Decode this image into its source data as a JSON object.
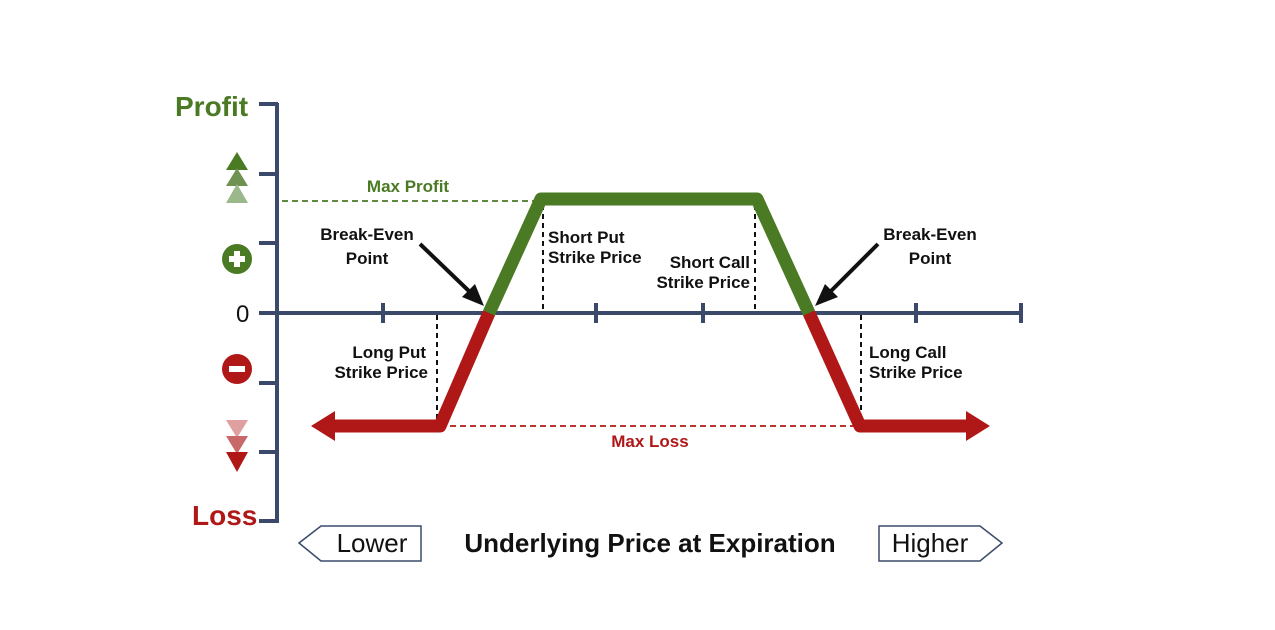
{
  "colors": {
    "axis": "#3b4a6b",
    "profit": "#4a7a23",
    "loss": "#b01818",
    "profit_light": "#8fae7a",
    "loss_light": "#d98a8a",
    "text": "#111111"
  },
  "labels": {
    "profit": "Profit",
    "loss": "Loss",
    "zero": "0",
    "max_profit": "Max Profit",
    "max_loss": "Max Loss",
    "break_even_left_1": "Break-Even",
    "break_even_left_2": "Point",
    "break_even_right_1": "Break-Even",
    "break_even_right_2": "Point",
    "short_put_1": "Short Put",
    "short_put_2": "Strike Price",
    "short_call_1": "Short Call",
    "short_call_2": "Strike Price",
    "long_put_1": "Long Put",
    "long_put_2": "Strike Price",
    "long_call_1": "Long Call",
    "long_call_2": "Strike Price",
    "x_axis_title": "Underlying Price at Expiration",
    "lower": "Lower",
    "higher": "Higher"
  },
  "icons": {
    "plus": "plus-circle-icon",
    "minus": "minus-circle-icon",
    "up": "triple-up-arrow-icon",
    "down": "triple-down-arrow-icon"
  }
}
